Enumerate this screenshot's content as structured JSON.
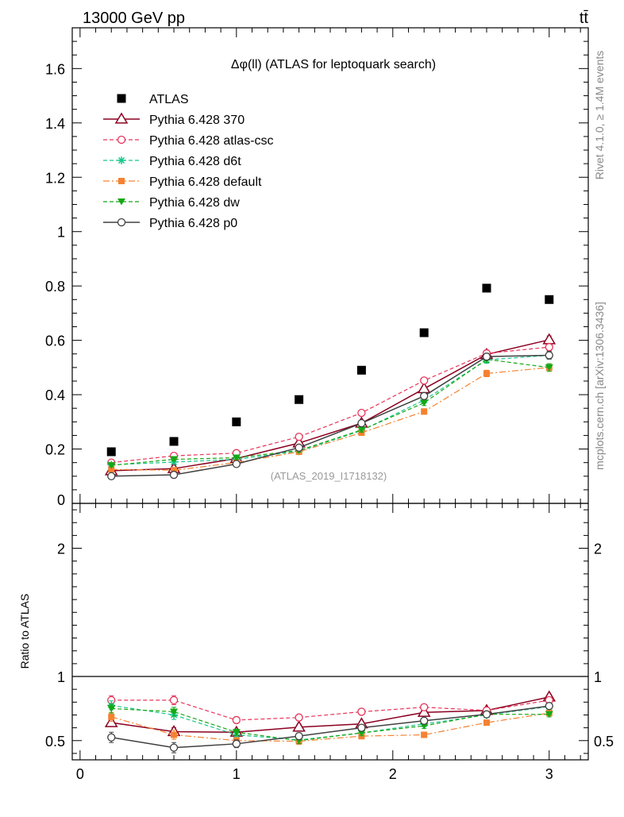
{
  "header": {
    "beam": "13000 GeV pp",
    "process": "tt̄",
    "title": "Δφ(ll) (ATLAS for leptoquark search)",
    "side_rivet": "Rivet 4.1.0, ≥ 1.4M events",
    "side_mcplots": "mcplots.cern.ch [arXiv:1306.3436]",
    "analysis_id": "(ATLAS_2019_I1718132)",
    "ratio_ylabel": "Ratio to ATLAS"
  },
  "colors": {
    "data": "#000000",
    "p370": "#8b0020",
    "atlascsc": "#e8345a",
    "d6t": "#19c78c",
    "default": "#f58231",
    "dw": "#14a814",
    "p0": "#404040"
  },
  "chart_data": [
    {
      "type": "line",
      "name": "main",
      "ylim": [
        0,
        1.75
      ],
      "xlim": [
        -0.05,
        3.25
      ],
      "yticks": [
        0,
        0.2,
        0.4,
        0.6,
        0.8,
        1,
        1.2,
        1.4,
        1.6
      ],
      "ytick_labels": [
        "0",
        "0.2",
        "0.4",
        "0.6",
        "0.8",
        "1",
        "1.2",
        "1.4",
        "1.6"
      ],
      "x": [
        0.2,
        0.6,
        1.0,
        1.4,
        1.8,
        2.2,
        2.6,
        3.0
      ],
      "series": [
        {
          "name": "ATLAS",
          "key": "data",
          "values": [
            0.19,
            0.228,
            0.3,
            0.382,
            0.49,
            0.628,
            0.792,
            0.75
          ],
          "err": [
            0.005,
            0.005,
            0.005,
            0.005,
            0.005,
            0.006,
            0.007,
            0.007
          ]
        },
        {
          "name": "Pythia 6.428 370",
          "key": "p370",
          "values": [
            0.12,
            0.128,
            0.165,
            0.222,
            0.295,
            0.422,
            0.548,
            0.602
          ],
          "err": [
            0.006,
            0.006,
            0.006,
            0.007,
            0.008,
            0.01,
            0.012,
            0.014
          ]
        },
        {
          "name": "Pythia 6.428 atlas-csc",
          "key": "atlascsc",
          "values": [
            0.15,
            0.175,
            0.185,
            0.245,
            0.333,
            0.452,
            0.552,
            0.575
          ],
          "err": [
            0.006,
            0.006,
            0.006,
            0.007,
            0.008,
            0.01,
            0.012,
            0.014
          ]
        },
        {
          "name": "Pythia 6.428 d6t",
          "key": "d6t",
          "values": [
            0.142,
            0.152,
            0.162,
            0.192,
            0.268,
            0.38,
            0.528,
            0.545
          ],
          "err": [
            0.006,
            0.006,
            0.006,
            0.007,
            0.008,
            0.01,
            0.012,
            0.014
          ]
        },
        {
          "name": "Pythia 6.428 default",
          "key": "default",
          "values": [
            0.125,
            0.122,
            0.15,
            0.19,
            0.26,
            0.338,
            0.478,
            0.5
          ],
          "err": [
            0.006,
            0.006,
            0.006,
            0.007,
            0.008,
            0.01,
            0.012,
            0.014
          ]
        },
        {
          "name": "Pythia 6.428 dw",
          "key": "dw",
          "values": [
            0.14,
            0.162,
            0.168,
            0.195,
            0.27,
            0.37,
            0.53,
            0.5
          ],
          "err": [
            0.006,
            0.006,
            0.006,
            0.007,
            0.008,
            0.01,
            0.012,
            0.014
          ]
        },
        {
          "name": "Pythia 6.428 p0",
          "key": "p0",
          "values": [
            0.1,
            0.105,
            0.145,
            0.205,
            0.295,
            0.395,
            0.54,
            0.545
          ],
          "err": [
            0.006,
            0.006,
            0.006,
            0.007,
            0.008,
            0.01,
            0.012,
            0.014
          ]
        }
      ]
    },
    {
      "type": "line",
      "name": "ratio",
      "ylim": [
        0.35,
        2.35
      ],
      "xlim": [
        -0.05,
        3.25
      ],
      "xticks": [
        0,
        1,
        2,
        3
      ],
      "xtick_labels": [
        "0",
        "1",
        "2",
        "3"
      ],
      "yticks": [
        0.5,
        1,
        2
      ],
      "ytick_labels": [
        "0.5",
        "1",
        "2"
      ],
      "reference_line": 1,
      "x": [
        0.2,
        0.6,
        1.0,
        1.4,
        1.8,
        2.2,
        2.6,
        3.0
      ],
      "series": [
        {
          "name": "Pythia 6.428 370",
          "key": "p370",
          "values": [
            0.64,
            0.57,
            0.565,
            0.605,
            0.63,
            0.72,
            0.735,
            0.84
          ],
          "err": [
            0.03,
            0.03,
            0.022,
            0.022,
            0.02,
            0.02,
            0.016,
            0.02
          ]
        },
        {
          "name": "Pythia 6.428 atlas-csc",
          "key": "atlascsc",
          "values": [
            0.815,
            0.815,
            0.66,
            0.68,
            0.725,
            0.76,
            0.735,
            0.815
          ],
          "err": [
            0.035,
            0.035,
            0.024,
            0.024,
            0.022,
            0.02,
            0.016,
            0.02
          ]
        },
        {
          "name": "Pythia 6.428 d6t",
          "key": "d6t",
          "values": [
            0.775,
            0.7,
            0.545,
            0.505,
            0.56,
            0.63,
            0.7,
            0.765
          ],
          "err": [
            0.035,
            0.035,
            0.024,
            0.024,
            0.022,
            0.02,
            0.016,
            0.02
          ]
        },
        {
          "name": "Pythia 6.428 default",
          "key": "default",
          "values": [
            0.685,
            0.545,
            0.5,
            0.495,
            0.535,
            0.545,
            0.64,
            0.715
          ],
          "err": [
            0.035,
            0.035,
            0.024,
            0.024,
            0.022,
            0.02,
            0.016,
            0.02
          ]
        },
        {
          "name": "Pythia 6.428 dw",
          "key": "dw",
          "values": [
            0.75,
            0.725,
            0.565,
            0.5,
            0.56,
            0.615,
            0.705,
            0.705
          ],
          "err": [
            0.035,
            0.035,
            0.024,
            0.024,
            0.022,
            0.02,
            0.016,
            0.02
          ]
        },
        {
          "name": "Pythia 6.428 p0",
          "key": "p0",
          "values": [
            0.525,
            0.445,
            0.475,
            0.535,
            0.6,
            0.655,
            0.705,
            0.77
          ],
          "err": [
            0.04,
            0.04,
            0.03,
            0.026,
            0.024,
            0.02,
            0.016,
            0.02
          ]
        }
      ]
    }
  ]
}
